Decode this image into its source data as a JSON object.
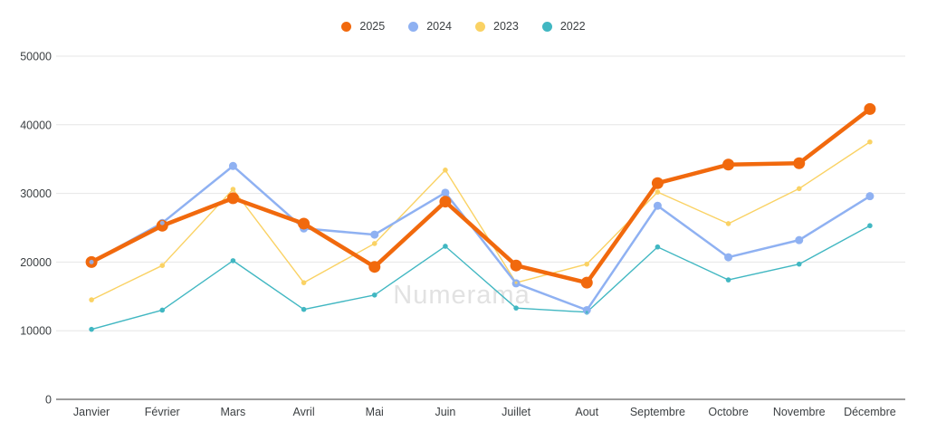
{
  "watermark": "Numerama",
  "legend": {
    "position": "top",
    "items": [
      {
        "label": "2025",
        "color": "#F1690D"
      },
      {
        "label": "2024",
        "color": "#8FB1F2"
      },
      {
        "label": "2023",
        "color": "#FAD264"
      },
      {
        "label": "2022",
        "color": "#41B7C2"
      }
    ]
  },
  "chart_data": {
    "type": "line",
    "title": "",
    "xlabel": "",
    "ylabel": "",
    "categories": [
      "Janvier",
      "Février",
      "Mars",
      "Avril",
      "Mai",
      "Juin",
      "Juillet",
      "Aout",
      "Septembre",
      "Octobre",
      "Novembre",
      "Décembre"
    ],
    "series": [
      {
        "name": "2025",
        "color": "#F1690D",
        "line_width": 4.5,
        "marker_radius": 6.5,
        "values": [
          20000,
          25300,
          29300,
          25600,
          19300,
          28800,
          19500,
          17000,
          31500,
          34200,
          34400,
          42300
        ]
      },
      {
        "name": "2024",
        "color": "#8FB1F2",
        "line_width": 2.5,
        "marker_radius": 4.5,
        "values": [
          20000,
          25700,
          34000,
          24900,
          24000,
          30100,
          16900,
          13000,
          28200,
          20700,
          23200,
          29600
        ]
      },
      {
        "name": "2023",
        "color": "#FAD264",
        "line_width": 1.4,
        "marker_radius": 2.8,
        "values": [
          14500,
          19500,
          30600,
          17000,
          22700,
          33400,
          17000,
          19700,
          30200,
          25600,
          30700,
          37500
        ]
      },
      {
        "name": "2022",
        "color": "#41B7C2",
        "line_width": 1.4,
        "marker_radius": 2.8,
        "values": [
          10200,
          13000,
          20200,
          13100,
          15200,
          22300,
          13300,
          12700,
          22200,
          17400,
          19700,
          25300
        ]
      }
    ],
    "ylim": [
      0,
      50000
    ],
    "y_ticks": [
      0,
      10000,
      20000,
      30000,
      40000,
      50000
    ],
    "grid": true,
    "legend_position": "top"
  },
  "colors": {
    "background": "#ffffff",
    "grid": "#e6e6e6",
    "axis": "#616161",
    "tick_label": "#3c4043",
    "watermark": "#e2e2e2"
  }
}
